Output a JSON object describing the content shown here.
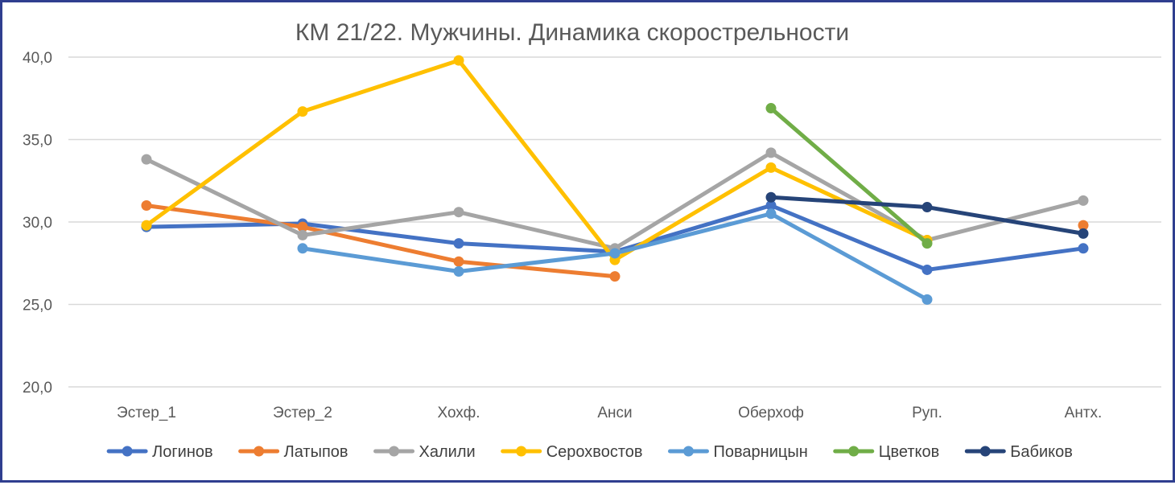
{
  "chart_data": {
    "type": "line",
    "title": "КМ 21/22. Мужчины. Динамика скорострельности",
    "xlabel": "",
    "ylabel": "",
    "categories": [
      "Эстер_1",
      "Эстер_2",
      "Хохф.",
      "Анси",
      "Оберхоф",
      "Руп.",
      "Антх."
    ],
    "ylim": [
      20,
      40
    ],
    "yticks": [
      "20,0",
      "25,0",
      "30,0",
      "35,0",
      "40,0"
    ],
    "grid": true,
    "legend_position": "bottom",
    "series": [
      {
        "name": "Логинов",
        "color": "#4472c4",
        "values": [
          29.7,
          29.9,
          28.7,
          28.2,
          31.0,
          27.1,
          28.4
        ]
      },
      {
        "name": "Латыпов",
        "color": "#ed7d31",
        "values": [
          31.0,
          29.7,
          27.6,
          26.7,
          null,
          null,
          29.8
        ]
      },
      {
        "name": "Халили",
        "color": "#a5a5a5",
        "values": [
          33.8,
          29.2,
          30.6,
          28.4,
          34.2,
          28.9,
          31.3
        ]
      },
      {
        "name": "Серохвостов",
        "color": "#ffc000",
        "values": [
          29.8,
          36.7,
          39.8,
          27.7,
          33.3,
          28.9,
          null
        ]
      },
      {
        "name": "Поварницын",
        "color": "#5b9bd5",
        "values": [
          null,
          28.4,
          27.0,
          28.1,
          30.5,
          25.3,
          null
        ]
      },
      {
        "name": "Цветков",
        "color": "#70ad47",
        "values": [
          null,
          null,
          null,
          null,
          36.9,
          28.7,
          null
        ]
      },
      {
        "name": "Бабиков",
        "color": "#264478",
        "values": [
          null,
          null,
          null,
          null,
          31.5,
          30.9,
          29.3
        ]
      }
    ]
  }
}
